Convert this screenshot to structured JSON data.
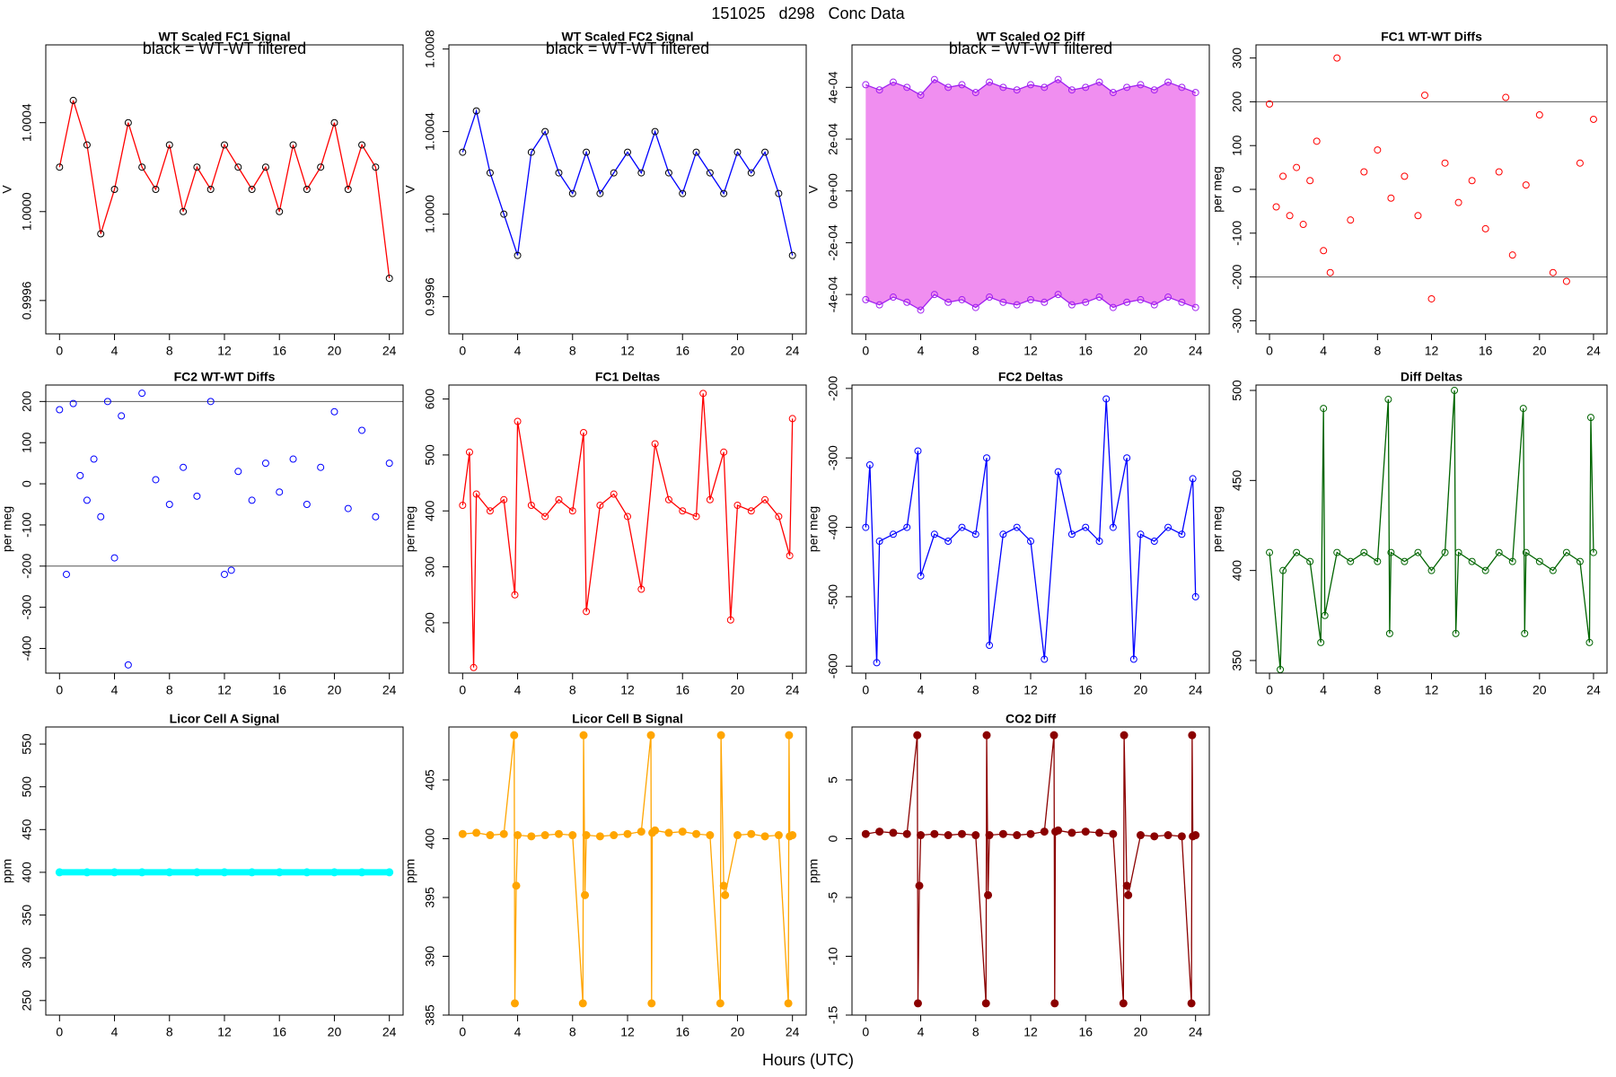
{
  "title": "151025   d298   Conc Data",
  "xlabel": "Hours (UTC)",
  "chart_data": [
    {
      "type": "line",
      "title": "WT Scaled FC1 Signal",
      "annotation": "black = WT-WT filtered",
      "ylabel": "V",
      "marker": "open",
      "marker_color": "#000000",
      "xlim": [
        -1,
        25
      ],
      "xticks": [
        0,
        4,
        8,
        12,
        16,
        20,
        24
      ],
      "ylim": [
        0.99945,
        1.00075
      ],
      "yticks": [
        0.9996,
        {
          "value": 1,
          "label": "1.0000"
        },
        1.0004
      ],
      "series": [
        {
          "color": "#ff0000",
          "x": [
            0,
            1,
            2,
            3,
            4,
            5,
            6,
            7,
            8,
            9,
            10,
            11,
            12,
            13,
            14,
            15,
            16,
            17,
            18,
            19,
            20,
            21,
            22,
            23,
            24
          ],
          "values": [
            1.0002,
            1.0005,
            1.0003,
            0.9999,
            1.0001,
            1.0004,
            1.0002,
            1.0001,
            1.0003,
            1.0,
            1.0002,
            1.0001,
            1.0003,
            1.0002,
            1.0001,
            1.0002,
            1.0,
            1.0003,
            1.0001,
            1.0002,
            1.0004,
            1.0001,
            1.0003,
            1.0002,
            0.9997
          ]
        }
      ]
    },
    {
      "type": "line",
      "title": "WT Scaled FC2 Signal",
      "annotation": "black = WT-WT filtered",
      "ylabel": "V",
      "marker": "open",
      "marker_color": "#000000",
      "xlim": [
        -1,
        25
      ],
      "xticks": [
        0,
        4,
        8,
        12,
        16,
        20,
        24
      ],
      "ylim": [
        0.99942,
        1.00082
      ],
      "yticks": [
        0.9996,
        {
          "value": 1,
          "label": "1.0000"
        },
        1.0004,
        1.0008
      ],
      "series": [
        {
          "color": "#0000ff",
          "x": [
            0,
            1,
            2,
            3,
            4,
            5,
            6,
            7,
            8,
            9,
            10,
            11,
            12,
            13,
            14,
            15,
            16,
            17,
            18,
            19,
            20,
            21,
            22,
            23,
            24
          ],
          "values": [
            1.0003,
            1.0005,
            1.0002,
            1.0,
            0.9998,
            1.0003,
            1.0004,
            1.0002,
            1.0001,
            1.0003,
            1.0001,
            1.0002,
            1.0003,
            1.0002,
            1.0004,
            1.0002,
            1.0001,
            1.0003,
            1.0002,
            1.0001,
            1.0003,
            1.0002,
            1.0003,
            1.0001,
            0.9998
          ]
        }
      ]
    },
    {
      "type": "line",
      "title": "WT Scaled O2 Diff",
      "annotation": "black = WT-WT filtered",
      "ylabel": "V",
      "marker": "open",
      "fill_between": "#ee82ee",
      "xlim": [
        -1,
        25
      ],
      "xticks": [
        0,
        4,
        8,
        12,
        16,
        20,
        24
      ],
      "ylim": [
        -0.000552,
        0.000564
      ],
      "yticks": [
        {
          "value": -0.0004,
          "label": "-4e-04"
        },
        {
          "value": -0.0002,
          "label": "-2e-04"
        },
        {
          "value": 0,
          "label": "0e+00"
        },
        {
          "value": 0.0002,
          "label": "2e-04"
        },
        {
          "value": 0.0004,
          "label": "4e-04"
        }
      ],
      "series": [
        {
          "color": "#a020f0",
          "x": [
            0,
            1,
            2,
            3,
            4,
            5,
            6,
            7,
            8,
            9,
            10,
            11,
            12,
            13,
            14,
            15,
            16,
            17,
            18,
            19,
            20,
            21,
            22,
            23,
            24
          ],
          "values": [
            0.00041,
            0.00039,
            0.00042,
            0.0004,
            0.00037,
            0.00043,
            0.0004,
            0.00041,
            0.00038,
            0.00042,
            0.0004,
            0.00039,
            0.00041,
            0.0004,
            0.00043,
            0.00039,
            0.0004,
            0.00042,
            0.00038,
            0.0004,
            0.00041,
            0.00039,
            0.00042,
            0.0004,
            0.00038
          ]
        },
        {
          "color": "#a020f0",
          "x": [
            0,
            1,
            2,
            3,
            4,
            5,
            6,
            7,
            8,
            9,
            10,
            11,
            12,
            13,
            14,
            15,
            16,
            17,
            18,
            19,
            20,
            21,
            22,
            23,
            24
          ],
          "values": [
            -0.00042,
            -0.00044,
            -0.00041,
            -0.00043,
            -0.00046,
            -0.0004,
            -0.00043,
            -0.00042,
            -0.00045,
            -0.00041,
            -0.00043,
            -0.00044,
            -0.00042,
            -0.00043,
            -0.0004,
            -0.00044,
            -0.00043,
            -0.00041,
            -0.00045,
            -0.00043,
            -0.00042,
            -0.00044,
            -0.00041,
            -0.00043,
            -0.00045
          ]
        }
      ]
    },
    {
      "type": "scatter",
      "title": "FC1 WT-WT Diffs",
      "ylabel": "per meg",
      "marker": "open",
      "hlines": [
        -200,
        200
      ],
      "xlim": [
        -1,
        25
      ],
      "xticks": [
        0,
        4,
        8,
        12,
        16,
        20,
        24
      ],
      "ylim": [
        -330,
        330
      ],
      "yticks": [
        -300,
        -200,
        -100,
        0,
        100,
        200,
        300
      ],
      "series": [
        {
          "color": "#ff0000",
          "x": [
            0,
            0.5,
            1,
            1.5,
            2,
            2.5,
            3,
            3.5,
            4,
            4.5,
            5,
            6,
            7,
            8,
            9,
            10,
            11,
            11.5,
            12,
            13,
            14,
            15,
            16,
            17,
            17.5,
            18,
            19,
            20,
            21,
            22,
            23,
            24
          ],
          "values": [
            195,
            -40,
            30,
            -60,
            50,
            -80,
            20,
            110,
            -140,
            -190,
            300,
            -70,
            40,
            90,
            -20,
            30,
            -60,
            215,
            -250,
            60,
            -30,
            20,
            -90,
            40,
            210,
            -150,
            10,
            170,
            -190,
            -210,
            60,
            160
          ]
        }
      ]
    },
    {
      "type": "scatter",
      "title": "FC2 WT-WT Diffs",
      "ylabel": "per meg",
      "marker": "open",
      "hlines": [
        -200,
        200
      ],
      "xlim": [
        -1,
        25
      ],
      "xticks": [
        0,
        4,
        8,
        12,
        16,
        20,
        24
      ],
      "ylim": [
        -460,
        240
      ],
      "yticks": [
        -400,
        -300,
        -200,
        -100,
        0,
        100,
        200
      ],
      "series": [
        {
          "color": "#0000ff",
          "x": [
            0,
            0.5,
            1,
            1.5,
            2,
            2.5,
            3,
            3.5,
            4,
            4.5,
            5,
            6,
            7,
            8,
            9,
            10,
            11,
            12,
            12.5,
            13,
            14,
            15,
            16,
            17,
            18,
            19,
            20,
            21,
            22,
            23,
            24
          ],
          "values": [
            180,
            -220,
            195,
            20,
            -40,
            60,
            -80,
            200,
            -180,
            165,
            -440,
            220,
            10,
            -50,
            40,
            -30,
            200,
            -220,
            -210,
            30,
            -40,
            50,
            -20,
            60,
            -50,
            40,
            175,
            -60,
            130,
            -80,
            50
          ]
        }
      ]
    },
    {
      "type": "line",
      "title": "FC1 Deltas",
      "ylabel": "per meg",
      "marker": "open",
      "xlim": [
        -1,
        25
      ],
      "xticks": [
        0,
        4,
        8,
        12,
        16,
        20,
        24
      ],
      "ylim": [
        110,
        625
      ],
      "yticks": [
        200,
        300,
        400,
        500,
        600
      ],
      "series": [
        {
          "color": "#ff0000",
          "x": [
            0,
            0.5,
            0.8,
            1,
            2,
            3,
            3.8,
            4,
            5,
            6,
            7,
            8,
            8.8,
            9,
            10,
            11,
            12,
            13,
            14,
            15,
            16,
            17,
            17.5,
            18,
            19,
            19.5,
            20,
            21,
            22,
            23,
            23.8,
            24
          ],
          "values": [
            410,
            505,
            120,
            430,
            400,
            420,
            250,
            560,
            410,
            390,
            420,
            400,
            540,
            220,
            410,
            430,
            390,
            260,
            520,
            420,
            400,
            390,
            610,
            420,
            505,
            205,
            410,
            400,
            420,
            390,
            320,
            565
          ]
        }
      ]
    },
    {
      "type": "line",
      "title": "FC2 Deltas",
      "ylabel": "per meg",
      "marker": "open",
      "xlim": [
        -1,
        25
      ],
      "xticks": [
        0,
        4,
        8,
        12,
        16,
        20,
        24
      ],
      "ylim": [
        -610,
        -195
      ],
      "yticks": [
        -600,
        -500,
        -400,
        -300,
        -200
      ],
      "series": [
        {
          "color": "#0000ff",
          "x": [
            0,
            0.3,
            0.8,
            1,
            2,
            3,
            3.8,
            4,
            5,
            6,
            7,
            8,
            8.8,
            9,
            10,
            11,
            12,
            13,
            14,
            15,
            16,
            17,
            17.5,
            18,
            19,
            19.5,
            20,
            21,
            22,
            23,
            23.8,
            24
          ],
          "values": [
            -400,
            -310,
            -595,
            -420,
            -410,
            -400,
            -290,
            -470,
            -410,
            -420,
            -400,
            -410,
            -300,
            -570,
            -410,
            -400,
            -420,
            -590,
            -320,
            -410,
            -400,
            -420,
            -215,
            -400,
            -300,
            -590,
            -410,
            -420,
            -400,
            -410,
            -330,
            -500
          ]
        }
      ]
    },
    {
      "type": "line",
      "title": "Diff Deltas",
      "ylabel": "per meg",
      "marker": "open",
      "xlim": [
        -1,
        25
      ],
      "xticks": [
        0,
        4,
        8,
        12,
        16,
        20,
        24
      ],
      "ylim": [
        343,
        503
      ],
      "yticks": [
        350,
        400,
        450,
        500
      ],
      "series": [
        {
          "color": "#006400",
          "x": [
            0,
            0.8,
            1,
            2,
            3,
            3.8,
            4,
            4.1,
            5,
            6,
            7,
            8,
            8.8,
            8.9,
            9,
            10,
            11,
            12,
            13,
            13.7,
            13.8,
            14,
            15,
            16,
            17,
            18,
            18.8,
            18.9,
            19,
            20,
            21,
            22,
            23,
            23.7,
            23.8,
            24
          ],
          "values": [
            410,
            345,
            400,
            410,
            405,
            360,
            490,
            375,
            410,
            405,
            410,
            405,
            495,
            365,
            410,
            405,
            410,
            400,
            410,
            500,
            365,
            410,
            405,
            400,
            410,
            405,
            490,
            365,
            410,
            405,
            400,
            410,
            405,
            360,
            485,
            410
          ]
        }
      ]
    },
    {
      "type": "line",
      "title": "Licor Cell A Signal",
      "ylabel": "ppm",
      "marker": "filled",
      "line_width": 7,
      "xlim": [
        -1,
        25
      ],
      "xticks": [
        0,
        4,
        8,
        12,
        16,
        20,
        24
      ],
      "ylim": [
        233,
        570
      ],
      "yticks": [
        250,
        300,
        350,
        400,
        450,
        500,
        550
      ],
      "series": [
        {
          "color": "#00ffff",
          "x": [
            0,
            2,
            4,
            6,
            8,
            10,
            12,
            14,
            16,
            18,
            20,
            22,
            24
          ],
          "values": [
            400,
            400,
            400,
            400,
            400,
            400,
            400,
            400,
            400,
            400,
            400,
            400,
            400
          ]
        }
      ]
    },
    {
      "type": "line",
      "title": "Licor Cell B Signal",
      "ylabel": "ppm",
      "marker": "filled",
      "xlim": [
        -1,
        25
      ],
      "xticks": [
        0,
        4,
        8,
        12,
        16,
        20,
        24
      ],
      "ylim": [
        385,
        409.5
      ],
      "yticks": [
        385,
        390,
        395,
        400,
        405
      ],
      "series": [
        {
          "color": "#ffa500",
          "x": [
            0,
            1,
            2,
            3,
            3.75,
            3.8,
            3.9,
            4,
            5,
            6,
            7,
            8,
            8.75,
            8.8,
            8.9,
            9,
            10,
            11,
            12,
            13,
            13.7,
            13.75,
            13.8,
            14,
            15,
            16,
            17,
            18,
            18.75,
            18.8,
            19,
            19.1,
            20,
            21,
            22,
            23,
            23.7,
            23.75,
            23.8,
            24
          ],
          "values": [
            400.4,
            400.5,
            400.3,
            400.4,
            408.8,
            386,
            396,
            400.3,
            400.2,
            400.3,
            400.4,
            400.3,
            386,
            408.8,
            395.2,
            400.3,
            400.2,
            400.3,
            400.4,
            400.6,
            408.8,
            386,
            400.5,
            400.7,
            400.5,
            400.6,
            400.4,
            400.3,
            386,
            408.8,
            396,
            395.2,
            400.3,
            400.4,
            400.2,
            400.3,
            386,
            408.8,
            400.2,
            400.3
          ]
        }
      ]
    },
    {
      "type": "line",
      "title": "CO2 Diff",
      "ylabel": "ppm",
      "marker": "filled",
      "xlim": [
        -1,
        25
      ],
      "xticks": [
        0,
        4,
        8,
        12,
        16,
        20,
        24
      ],
      "ylim": [
        -15,
        9.5
      ],
      "yticks": [
        -15,
        -10,
        -5,
        0,
        5
      ],
      "series": [
        {
          "color": "#8b0000",
          "x": [
            0,
            1,
            2,
            3,
            3.75,
            3.8,
            3.9,
            4,
            5,
            6,
            7,
            8,
            8.75,
            8.8,
            8.9,
            9,
            10,
            11,
            12,
            13,
            13.7,
            13.75,
            13.8,
            14,
            15,
            16,
            17,
            18,
            18.75,
            18.8,
            19,
            19.1,
            20,
            21,
            22,
            23,
            23.7,
            23.75,
            23.8,
            24
          ],
          "values": [
            0.4,
            0.6,
            0.5,
            0.4,
            8.8,
            -14,
            -4,
            0.3,
            0.4,
            0.3,
            0.4,
            0.3,
            -14,
            8.8,
            -4.8,
            0.3,
            0.4,
            0.3,
            0.4,
            0.6,
            8.8,
            -14,
            0.6,
            0.7,
            0.5,
            0.6,
            0.5,
            0.4,
            -14,
            8.8,
            -4,
            -4.8,
            0.3,
            0.2,
            0.3,
            0.2,
            -14,
            8.8,
            0.2,
            0.3
          ]
        }
      ]
    }
  ]
}
